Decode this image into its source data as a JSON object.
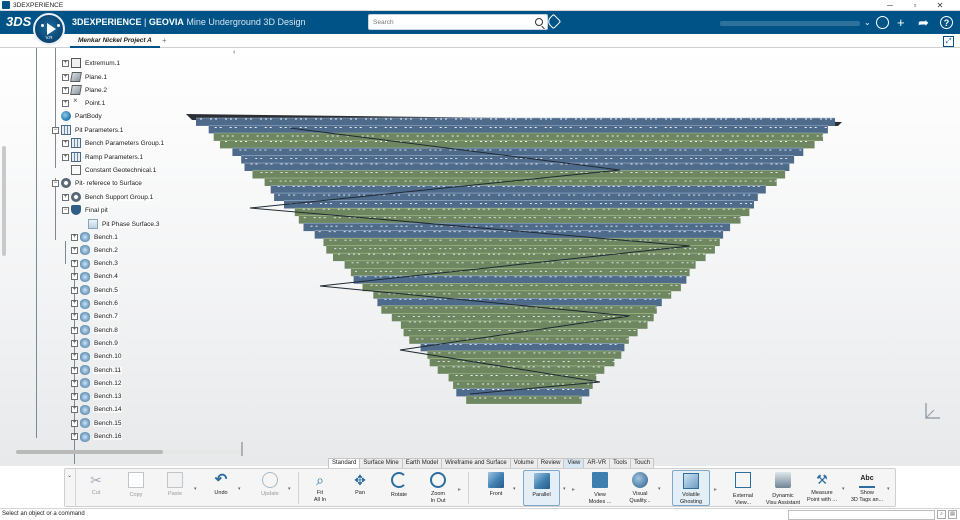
{
  "os": {
    "title": "3DEXPERIENCE",
    "minimize": "─",
    "maximize": "▫",
    "close": "✕"
  },
  "header": {
    "brand_main": "3DEXPERIENCE",
    "brand_sep": " | ",
    "brand_app": "GEOVIA",
    "brand_role": " Mine Underground 3D Design",
    "compass_version": "V.R",
    "search_placeholder": "Search",
    "brand_color": "#005386"
  },
  "tabs": [
    {
      "label": "Menkar Nickel Project A"
    }
  ],
  "tab_add": "+",
  "tree": {
    "collapse_glyph": "‹",
    "items": [
      {
        "label": "Extremum.1",
        "icon": "extremum-icon",
        "expander": "+"
      },
      {
        "label": "Plane.1",
        "icon": "plane-icon",
        "expander": "+"
      },
      {
        "label": "Plane.2",
        "icon": "plane-icon",
        "expander": "+"
      },
      {
        "label": "Point.1",
        "icon": "point-icon",
        "expander": "+"
      },
      {
        "label": "PartBody",
        "icon": "part-body-icon",
        "expander": ""
      },
      {
        "label": "Pit Parameters.1",
        "icon": "parameters-icon",
        "expander": "−"
      },
      {
        "label": "Bench Parameters Group.1",
        "icon": "parameters-icon",
        "expander": "+"
      },
      {
        "label": "Ramp Parameters.1",
        "icon": "parameters-icon",
        "expander": "+"
      },
      {
        "label": "Constant Geotechnical.1",
        "icon": "geotechnical-icon",
        "expander": ""
      },
      {
        "label": "Pit- referece to Surface",
        "icon": "gear-icon",
        "expander": "−"
      },
      {
        "label": "Bench Support Group.1",
        "icon": "gear-icon",
        "expander": "+"
      },
      {
        "label": "Final pit",
        "icon": "shield-icon",
        "expander": "−"
      },
      {
        "label": "Pit Phase Surface.3",
        "icon": "surface-icon",
        "expander": ""
      },
      {
        "label": "Bench.1",
        "icon": "bench-icon",
        "expander": "+"
      },
      {
        "label": "Bench.2",
        "icon": "bench-icon",
        "expander": "+"
      },
      {
        "label": "Bench.3",
        "icon": "bench-icon",
        "expander": "+"
      },
      {
        "label": "Bench.4",
        "icon": "bench-icon",
        "expander": "+"
      },
      {
        "label": "Bench.5",
        "icon": "bench-icon",
        "expander": "+"
      },
      {
        "label": "Bench.6",
        "icon": "bench-icon",
        "expander": "+"
      },
      {
        "label": "Bench.7",
        "icon": "bench-icon",
        "expander": "+"
      },
      {
        "label": "Bench.8",
        "icon": "bench-icon",
        "expander": "+"
      },
      {
        "label": "Bench.9",
        "icon": "bench-icon",
        "expander": "+"
      },
      {
        "label": "Bench.10",
        "icon": "bench-icon",
        "expander": "+"
      },
      {
        "label": "Bench.11",
        "icon": "bench-icon",
        "expander": "+"
      },
      {
        "label": "Bench.12",
        "icon": "bench-icon",
        "expander": "+"
      },
      {
        "label": "Bench.13",
        "icon": "bench-icon",
        "expander": "+"
      },
      {
        "label": "Bench.14",
        "icon": "bench-icon",
        "expander": "+"
      },
      {
        "label": "Bench.15",
        "icon": "bench-icon",
        "expander": "+"
      },
      {
        "label": "Bench.16",
        "icon": "bench-icon",
        "expander": "+"
      }
    ]
  },
  "section_tabs": [
    {
      "label": "Standard",
      "state": "active"
    },
    {
      "label": "Surface Mine",
      "state": ""
    },
    {
      "label": "Earth Model",
      "state": ""
    },
    {
      "label": "Wireframe and Surface",
      "state": ""
    },
    {
      "label": "Volume",
      "state": ""
    },
    {
      "label": "Review",
      "state": ""
    },
    {
      "label": "View",
      "state": "current"
    },
    {
      "label": "AR-VR",
      "state": ""
    },
    {
      "label": "Tools",
      "state": ""
    },
    {
      "label": "Touch",
      "state": ""
    }
  ],
  "toolbar": {
    "cut": "Cut",
    "copy": "Copy",
    "paste": "Paste",
    "undo": "Undo",
    "update": "Update",
    "fit_all_in": "Fit\nAll In",
    "pan": "Pan",
    "rotate": "Rotate",
    "zoom": "Zoom\nIn Out",
    "front": "Front",
    "parallel": "Parallel",
    "view_modes": "View\nModes ...",
    "visual_quality": "Visual\nQuality...",
    "volatile_ghosting": "Volatile\nGhosting",
    "external_view": "External\nView...",
    "dynamic_visu": "Dynamic\nVisu Assistant",
    "measure": "Measure\nPoint with ...",
    "show_tags": "Show\n3D Tags an...",
    "tags_glyph": "Abc",
    "caret": "▾",
    "arrow": "▸"
  },
  "status": {
    "message": "Select an object or a command"
  },
  "colors": {
    "bench_blue": "#4f6b8c",
    "bench_green": "#6e8760",
    "ramp": "#1f2a33"
  }
}
